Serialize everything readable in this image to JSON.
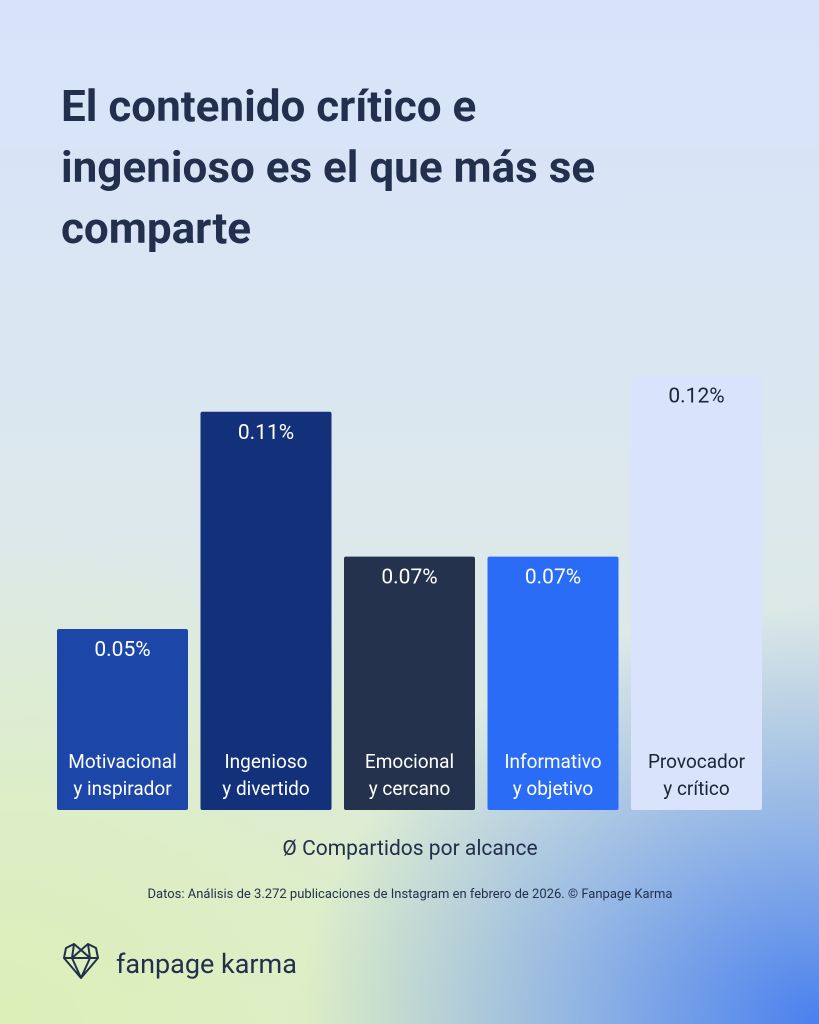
{
  "chart_data": {
    "type": "bar",
    "title": "El contenido crítico e ingenioso es el que más se comparte",
    "categories": [
      [
        "Motivacional",
        "y inspirador"
      ],
      [
        "Ingenioso",
        "y divertido"
      ],
      [
        "Emocional",
        "y cercano"
      ],
      [
        "Informativo",
        "y objetivo"
      ],
      [
        "Provocador",
        "y crítico"
      ]
    ],
    "values": [
      0.05,
      0.11,
      0.07,
      0.07,
      0.12
    ],
    "value_labels": [
      "0.05%",
      "0.11%",
      "0.07%",
      "0.07%",
      "0.12%"
    ],
    "colors": [
      "#1c47a9",
      "#13307b",
      "#24324d",
      "#2a6cf6",
      "#d9e3fb"
    ],
    "x_label": "Ø Compartidos por alcance",
    "source": "Datos: Análisis de 3.272 publicaciones de Instagram en febrero de 2026. © Fanpage Karma",
    "brand": "fanpage karma"
  }
}
